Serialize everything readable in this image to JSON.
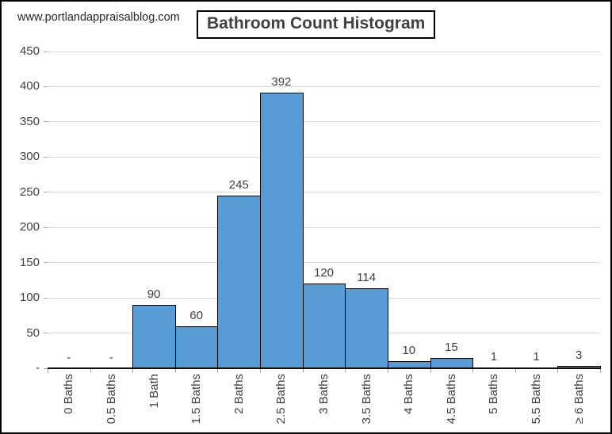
{
  "watermark": "www.portlandappraisalblog.com",
  "title": "Bathroom Count Histogram",
  "colors": {
    "bar_fill": "#5b9bd5",
    "bar_border": "#000000",
    "gridline": "#d9d9d9",
    "axis_line": "#0d0d0d",
    "tick": "#a6a6a6",
    "text": "#404040",
    "frame_border": "#000000",
    "background": "#ffffff"
  },
  "chart_data": {
    "type": "bar",
    "subtype": "histogram",
    "title": "Bathroom Count Histogram",
    "categories": [
      "0 Baths",
      "0.5 Baths",
      "1 Bath",
      "1.5 Baths",
      "2 Baths",
      "2.5 Baths",
      "3 Baths",
      "3.5 Baths",
      "4 Baths",
      "4.5 Baths",
      "5 Baths",
      "5.5 Baths",
      "≥ 6 Baths"
    ],
    "values": [
      0,
      0,
      90,
      60,
      245,
      392,
      120,
      114,
      10,
      15,
      1,
      1,
      3
    ],
    "data_labels": [
      "-",
      "-",
      "90",
      "60",
      "245",
      "392",
      "120",
      "114",
      "10",
      "15",
      "1",
      "1",
      "3"
    ],
    "xlabel": "",
    "ylabel": "",
    "ylim": [
      0,
      450
    ],
    "y_ticks": [
      {
        "value": 0,
        "label": "-"
      },
      {
        "value": 50,
        "label": "50"
      },
      {
        "value": 100,
        "label": "100"
      },
      {
        "value": 150,
        "label": "150"
      },
      {
        "value": 200,
        "label": "200"
      },
      {
        "value": 250,
        "label": "250"
      },
      {
        "value": 300,
        "label": "300"
      },
      {
        "value": 350,
        "label": "350"
      },
      {
        "value": 400,
        "label": "400"
      },
      {
        "value": 450,
        "label": "450"
      }
    ],
    "grid": true,
    "legend": "none",
    "bar_gap_percent": 0,
    "x_labels_rotated_degrees": 90
  }
}
